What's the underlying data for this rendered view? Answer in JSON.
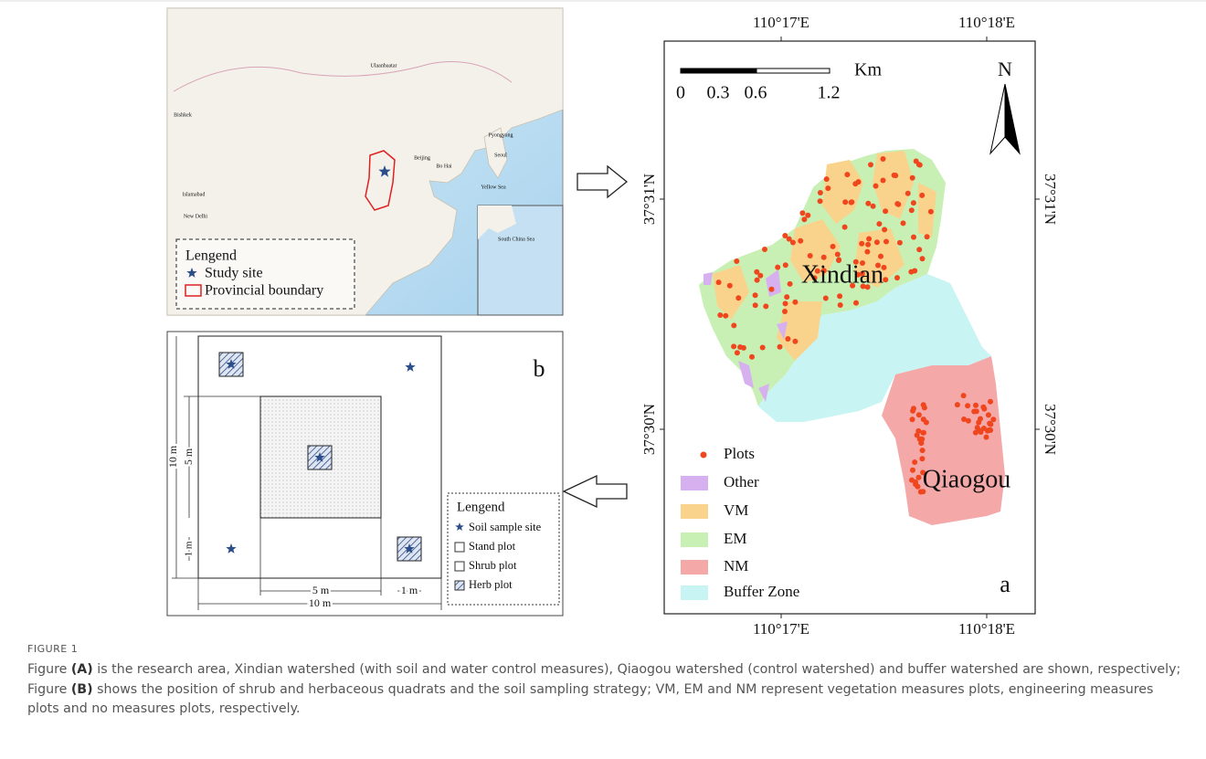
{
  "figure": {
    "overview_map": {
      "places": [
        "Ulaanbaatar",
        "Bishkek",
        "Beijing",
        "Bo Hai",
        "Pyongyang",
        "Seoul",
        "Yellow Sea",
        "Islamabad",
        "New Delhi",
        "South China Sea"
      ],
      "legend": {
        "title": "Lengend",
        "items": [
          "Study site",
          "Provincial boundary"
        ]
      }
    },
    "panel_b": {
      "label": "b",
      "dimensions_left": [
        "10 m",
        "5 m",
        "1 m"
      ],
      "dimensions_bottom": [
        "5 m",
        "1 m",
        "10 m"
      ],
      "legend": {
        "title": "Lengend",
        "items": [
          "Soil sample site",
          "Stand plot",
          "Shrub plot",
          "Herb plot"
        ]
      }
    },
    "panel_a": {
      "label": "a",
      "top_labels": [
        "110°17'E",
        "110°18'E"
      ],
      "bottom_labels": [
        "110°17'E",
        "110°18'E"
      ],
      "left_labels": [
        "37°31'N",
        "37°30'N"
      ],
      "right_labels": [
        "37°31'N",
        "37°30'N"
      ],
      "scale": {
        "unit": "Km",
        "ticks": [
          "0",
          "0.3",
          "0.6",
          "1.2"
        ]
      },
      "north": "N",
      "areas": [
        "Xindian",
        "Qiaogou"
      ],
      "legend": [
        "Plots",
        "Other",
        "VM",
        "EM",
        "NM",
        "Buffer Zone"
      ]
    }
  },
  "caption": {
    "label": "FIGURE 1",
    "parts": [
      "Figure ",
      "(A)",
      " is the research area, Xindian watershed (with soil and water control measures), Qiaogou watershed (control watershed) and buffer watershed are shown, respectively; Figure ",
      "(B)",
      " shows the position of shrub and herbaceous quadrats and the soil sampling strategy; VM, EM and NM represent vegetation measures plots, engineering measures plots and no measures plots, respectively."
    ]
  }
}
